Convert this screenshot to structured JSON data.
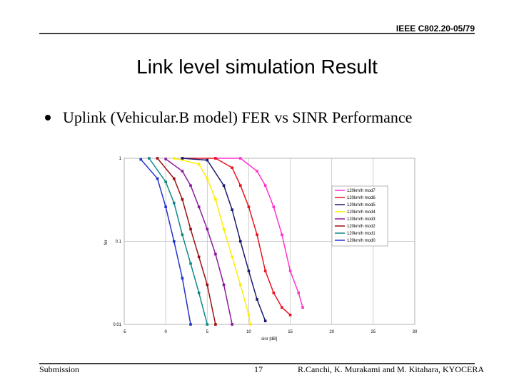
{
  "header": {
    "doc_id": "IEEE C802.20-05/79",
    "title": "Link level simulation Result",
    "bullet": "Uplink (Vehicular.B model) FER vs SINR Performance"
  },
  "footer": {
    "left": "Submission",
    "page": "17",
    "right": "R.Canchi, K. Murakami and M. Kitahara, KYOCERA"
  },
  "chart_data": {
    "type": "line",
    "x_label": "sinr [dB]",
    "y_label": "fer",
    "log_y": true,
    "grid": true,
    "legend": "right",
    "xlim": [
      -5,
      30
    ],
    "xticks": [
      -5,
      0,
      5,
      10,
      15,
      20,
      25,
      30
    ],
    "ylim": [
      0.01,
      1
    ],
    "yticks": [
      1,
      0.1,
      0.01
    ],
    "series": [
      {
        "name": "120km/h mod7",
        "color": "#ff33cc",
        "x": [
          6,
          9,
          11,
          12,
          13,
          14,
          15,
          16,
          16.5
        ],
        "values": [
          1,
          1,
          0.7,
          0.47,
          0.26,
          0.12,
          0.044,
          0.024,
          0.016
        ]
      },
      {
        "name": "120km/h mod6",
        "color": "#e8141e",
        "x": [
          2,
          6,
          8,
          9,
          10,
          11,
          12,
          13,
          14,
          15
        ],
        "values": [
          1,
          1,
          0.77,
          0.47,
          0.26,
          0.12,
          0.044,
          0.024,
          0.016,
          0.013
        ]
      },
      {
        "name": "120km/h mod5",
        "color": "#1a1a6e",
        "x": [
          2,
          5,
          7,
          8,
          9,
          10,
          11,
          12
        ],
        "values": [
          1,
          0.95,
          0.47,
          0.24,
          0.1,
          0.044,
          0.02,
          0.011
        ]
      },
      {
        "name": "120km/h mod4",
        "color": "#ffee00",
        "x": [
          1,
          4,
          5,
          6,
          7,
          8,
          9,
          10,
          10.2
        ],
        "values": [
          1,
          0.85,
          0.57,
          0.32,
          0.14,
          0.065,
          0.03,
          0.013,
          0.01
        ]
      },
      {
        "name": "120km/h mod3",
        "color": "#8a1a9a",
        "x": [
          0,
          2,
          3,
          4,
          5,
          6,
          7,
          8
        ],
        "values": [
          0.98,
          0.7,
          0.47,
          0.26,
          0.14,
          0.07,
          0.03,
          0.01
        ]
      },
      {
        "name": "120km/h mod2",
        "color": "#991111",
        "x": [
          -1,
          1,
          2,
          3,
          4,
          5,
          6
        ],
        "values": [
          1,
          0.57,
          0.32,
          0.14,
          0.065,
          0.03,
          0.01
        ]
      },
      {
        "name": "120km/h mod1",
        "color": "#118888",
        "x": [
          -2,
          0,
          1,
          2,
          3,
          4,
          5
        ],
        "values": [
          1,
          0.52,
          0.29,
          0.12,
          0.054,
          0.024,
          0.01
        ]
      },
      {
        "name": "120km/h mod0",
        "color": "#2233cc",
        "x": [
          -3,
          -1,
          0,
          1,
          2,
          3
        ],
        "values": [
          0.97,
          0.57,
          0.26,
          0.1,
          0.036,
          0.01
        ]
      }
    ]
  }
}
